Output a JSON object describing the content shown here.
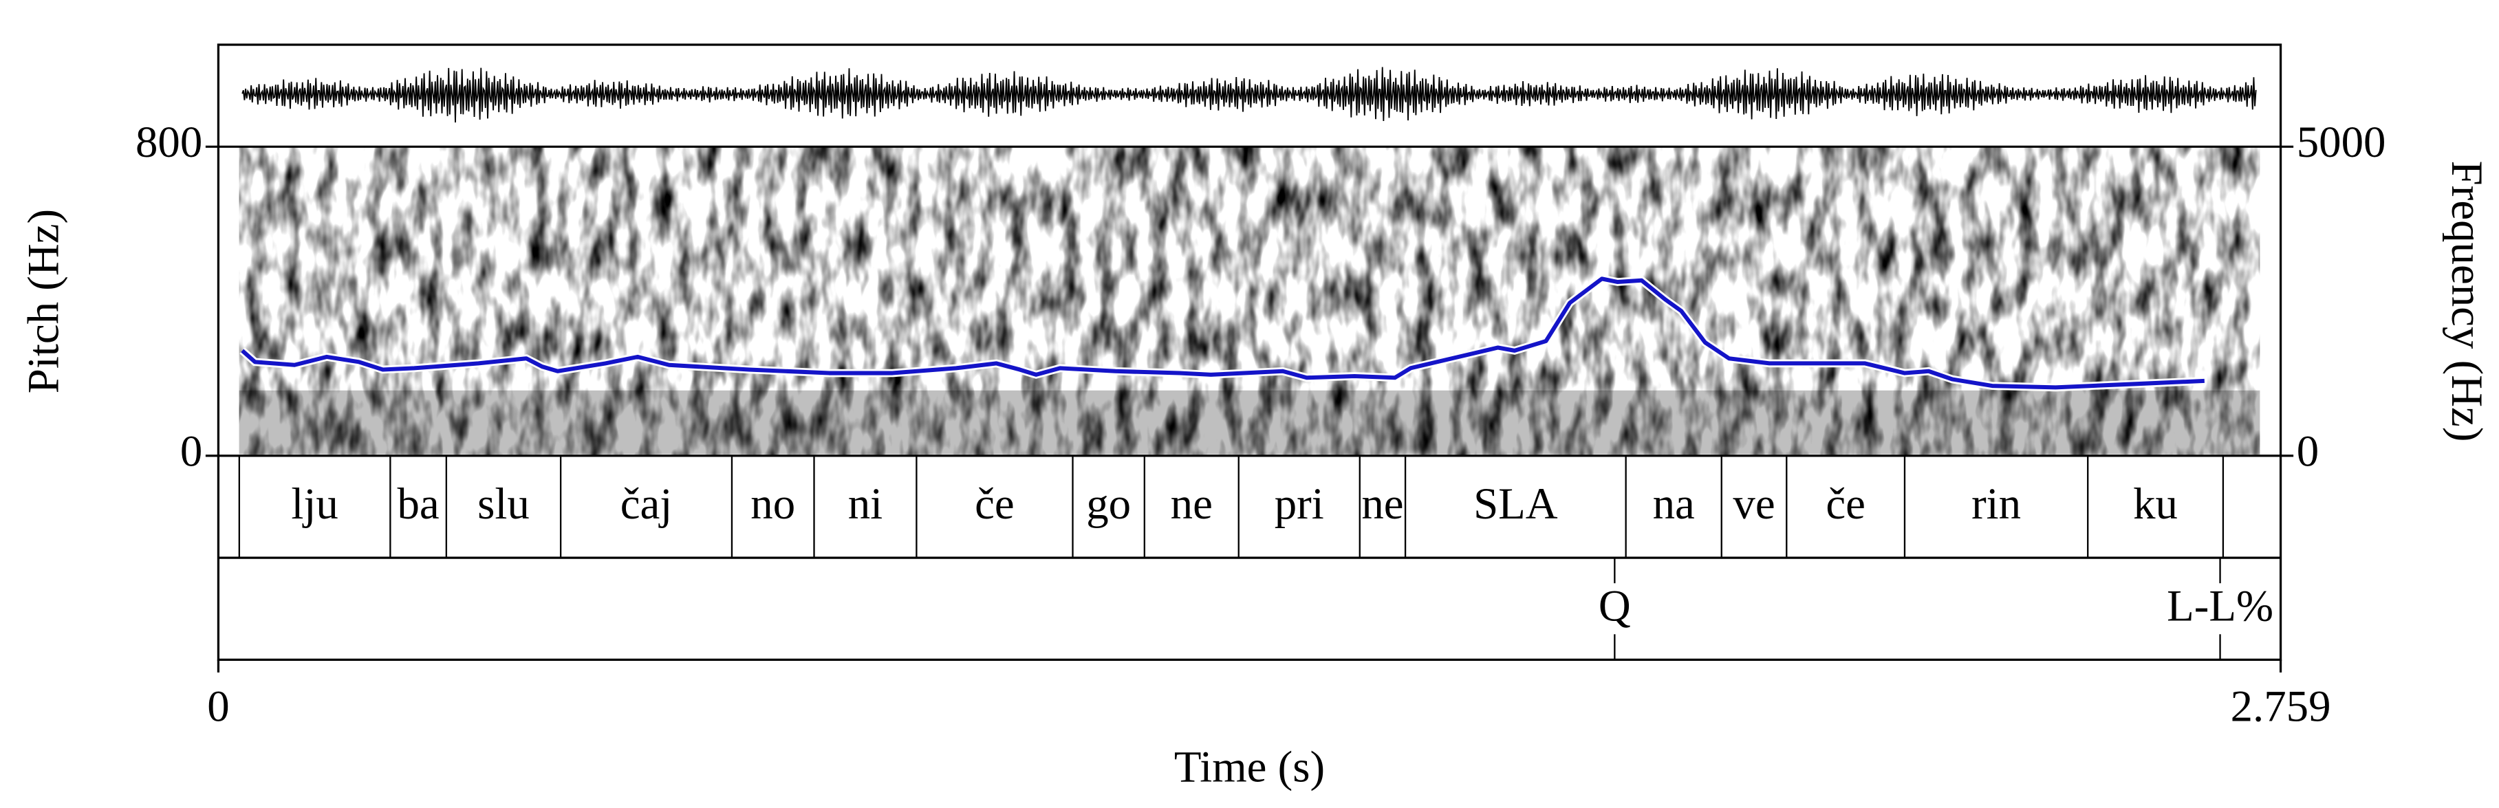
{
  "chart_data": {
    "type": "line",
    "xlabel": "Time (s)",
    "ylabel": "Pitch (Hz)",
    "y2label": "Frequency (Hz)",
    "xlim": [
      0,
      2.759
    ],
    "xticks": [
      0,
      2.759
    ],
    "ylim": [
      0,
      800
    ],
    "yticks": [
      0,
      800
    ],
    "y2lim": [
      0,
      5000
    ],
    "y2ticks": [
      0,
      5000
    ],
    "color": "#1414c8",
    "x": [
      0.032,
      0.049,
      0.102,
      0.145,
      0.188,
      0.22,
      0.262,
      0.348,
      0.412,
      0.433,
      0.454,
      0.518,
      0.561,
      0.603,
      0.71,
      0.817,
      0.902,
      0.987,
      1.041,
      1.072,
      1.094,
      1.126,
      1.2,
      1.286,
      1.328,
      1.424,
      1.456,
      1.52,
      1.574,
      1.595,
      1.712,
      1.734,
      1.776,
      1.808,
      1.851,
      1.872,
      1.904,
      1.936,
      1.957,
      1.989,
      2.021,
      2.075,
      2.203,
      2.256,
      2.288,
      2.32,
      2.373,
      2.458,
      2.565,
      2.657
    ],
    "values": [
      272,
      243,
      235,
      256,
      243,
      223,
      227,
      239,
      252,
      231,
      219,
      239,
      256,
      235,
      223,
      214,
      214,
      227,
      239,
      223,
      210,
      227,
      219,
      214,
      210,
      219,
      202,
      206,
      202,
      227,
      280,
      272,
      297,
      396,
      458,
      450,
      454,
      404,
      375,
      293,
      252,
      239,
      239,
      214,
      219,
      198,
      181,
      177,
      186,
      194
    ],
    "tiers": [
      {
        "boundaries": [
          0.028,
          0.23,
          0.305,
          0.458,
          0.687,
          0.797,
          0.934,
          1.143,
          1.239,
          1.365,
          1.527,
          1.588,
          1.883,
          2.011,
          2.098,
          2.256,
          2.501,
          2.682
        ],
        "labels": [
          "lju",
          "ba",
          "slu",
          "čaj",
          "no",
          "ni",
          "če",
          "go",
          "ne",
          "pri",
          "ne",
          "SLA",
          "na",
          "ve",
          "če",
          "rin",
          "ku"
        ]
      },
      {
        "points": [
          1.868,
          2.678
        ],
        "labels": [
          "Q",
          "L-L%"
        ]
      }
    ]
  }
}
